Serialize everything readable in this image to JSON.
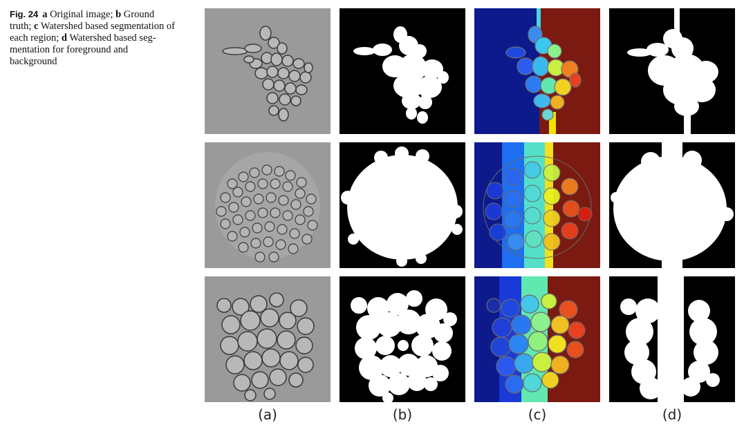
{
  "caption": {
    "fig_label": "Fig. 24",
    "a_letter": "a",
    "a_text": " Original image; ",
    "b_letter": "b",
    "b_text": " Ground truth; ",
    "c_letter": "c",
    "c_text": " Watershed based segmentation of each region; ",
    "d_letter": "d",
    "d_text": " Watershed based seg­mentation for foreground and background"
  },
  "columns": [
    {
      "label": "(a)"
    },
    {
      "label": "(b)"
    },
    {
      "label": "(c)"
    },
    {
      "label": "(d)"
    }
  ],
  "colors": {
    "micro_bg": "#9a9a9a",
    "mask_bg": "#000000",
    "mask_fg": "#ffffff",
    "ws_left": "#0c1a8c",
    "ws_right": "#7a1a10"
  }
}
